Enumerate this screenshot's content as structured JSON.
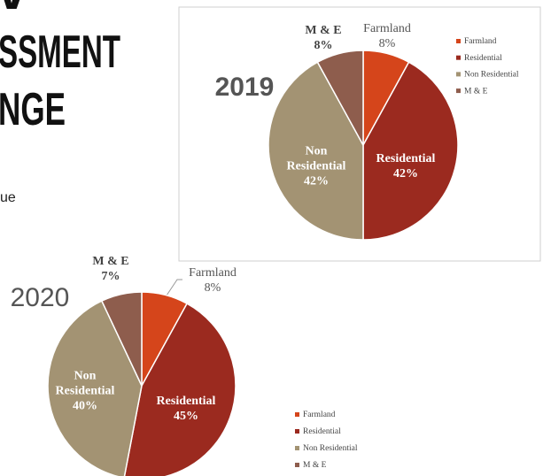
{
  "slide": {
    "title_lines": [
      "W",
      "SSMENT",
      "NGE"
    ],
    "body": "ue"
  },
  "chart_data": [
    {
      "type": "pie",
      "title": "2019",
      "categories": [
        "Farmland",
        "Residential",
        "Non Residential",
        "M & E"
      ],
      "values": [
        8,
        42,
        42,
        8
      ],
      "value_labels": [
        "8%",
        "42%",
        "42%",
        "8%"
      ],
      "colors": [
        "#d5451b",
        "#9b2a1f",
        "#a39373",
        "#8e5d4d"
      ]
    },
    {
      "type": "pie",
      "title": "2020",
      "categories": [
        "Farmland",
        "Residential",
        "Non Residential",
        "M & E"
      ],
      "values": [
        8,
        45,
        40,
        7
      ],
      "value_labels": [
        "8%",
        "45%",
        "40%",
        "7%"
      ],
      "colors": [
        "#d5451b",
        "#9b2a1f",
        "#a39373",
        "#8e5d4d"
      ]
    }
  ]
}
